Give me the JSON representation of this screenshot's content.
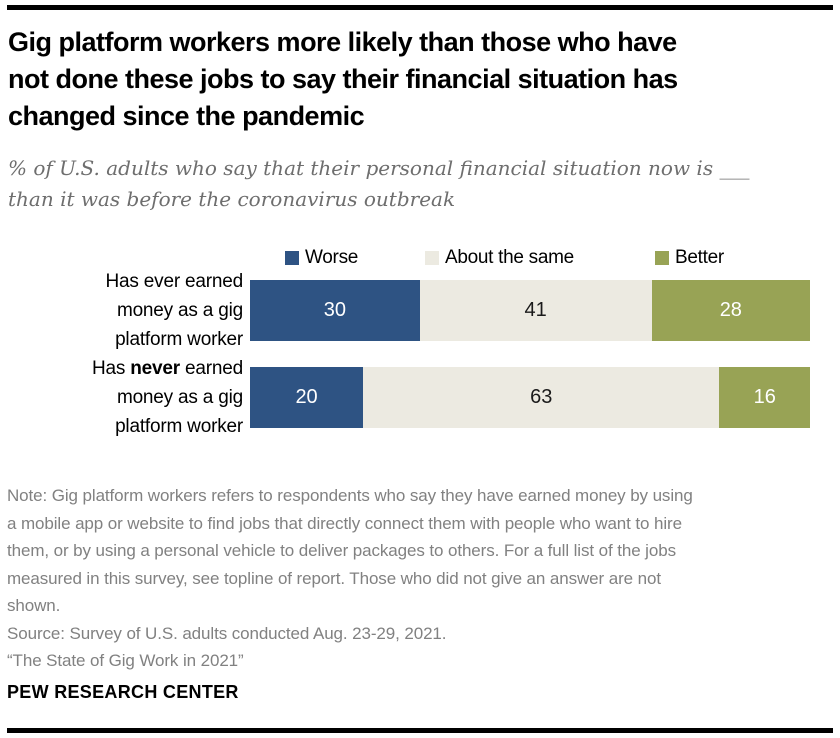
{
  "header": {
    "title_lines": [
      "Gig platform workers more likely than those who have",
      "not done these jobs to say their financial situation has",
      "changed since the pandemic"
    ],
    "subtitle_lines": [
      "% of U.S. adults who say that their personal financial situation now is ___",
      "than it was before the coronavirus outbreak"
    ]
  },
  "chart_data": {
    "type": "bar",
    "orientation": "horizontal",
    "stacked": true,
    "unit": "percent",
    "legend_position": "top",
    "grid": false,
    "categories": [
      "Has ever earned money as a gig platform worker",
      "Has never earned money as a gig platform worker"
    ],
    "series": [
      {
        "name": "Worse",
        "color": "#2e5383",
        "values": [
          30,
          20
        ]
      },
      {
        "name": "About the same",
        "color": "#eceae1",
        "values": [
          41,
          63
        ]
      },
      {
        "name": "Better",
        "color": "#98a355",
        "values": [
          28,
          16
        ]
      }
    ]
  },
  "row_labels": [
    {
      "line1_pre": "Has ever earned",
      "line1_bold": "",
      "line1_post": "",
      "line2": "money as a gig",
      "line3": "platform worker"
    },
    {
      "line1_pre": "Has ",
      "line1_bold": "never",
      "line1_post": " earned",
      "line2": "money as a gig",
      "line3": "platform worker"
    }
  ],
  "notes": {
    "note_lines": [
      "Note: Gig platform workers refers to respondents who say they have earned money by using",
      "a mobile app or website to find jobs that directly connect them with people who want to hire",
      "them, or by using a personal vehicle to deliver packages to others. For a full list of the jobs",
      "measured in this survey, see topline of report. Those who did not give an answer are not",
      "shown."
    ],
    "source": "Source: Survey of U.S. adults conducted Aug. 23-29, 2021.",
    "report_title": "“The State of Gig Work in 2021”"
  },
  "footer": {
    "brand": "PEW RESEARCH CENTER"
  }
}
